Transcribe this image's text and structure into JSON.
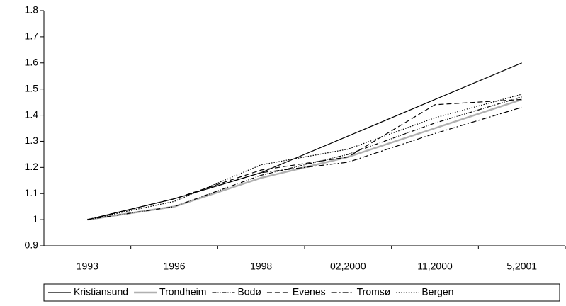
{
  "chart_data": {
    "type": "line",
    "categories": [
      "1993",
      "1996",
      "1998",
      "02,2000",
      "11,2000",
      "5,2001"
    ],
    "series": [
      {
        "name": "Kristiansund",
        "color": "#000000",
        "dash": "none",
        "values": [
          1.0,
          1.08,
          1.18,
          1.32,
          1.46,
          1.6
        ]
      },
      {
        "name": "Trondheim",
        "color": "#b0b0b0",
        "dash": "none",
        "values": [
          1.0,
          1.05,
          1.16,
          1.24,
          1.35,
          1.46
        ]
      },
      {
        "name": "Bodø",
        "color": "#000000",
        "dash": "6 2 1 2 1 2",
        "values": [
          1.0,
          1.05,
          1.17,
          1.25,
          1.37,
          1.47
        ]
      },
      {
        "name": "Evenes",
        "color": "#000000",
        "dash": "7 4",
        "values": [
          1.0,
          1.08,
          1.19,
          1.24,
          1.44,
          1.46
        ]
      },
      {
        "name": "Tromsø",
        "color": "#000000",
        "dash": "8 3 2 3",
        "values": [
          1.0,
          1.08,
          1.18,
          1.22,
          1.33,
          1.43
        ]
      },
      {
        "name": "Bergen",
        "color": "#000000",
        "dash": "1.5 2",
        "values": [
          1.0,
          1.07,
          1.21,
          1.27,
          1.39,
          1.48
        ]
      }
    ],
    "ylim": [
      0.9,
      1.8
    ],
    "yticks": [
      0.9,
      1,
      1.1,
      1.2,
      1.3,
      1.4,
      1.5,
      1.6,
      1.7,
      1.8
    ],
    "grid": false,
    "legend": "bottom"
  }
}
